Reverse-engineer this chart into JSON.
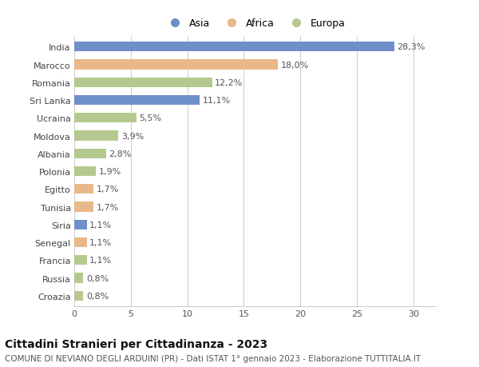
{
  "categories": [
    "India",
    "Marocco",
    "Romania",
    "Sri Lanka",
    "Ucraina",
    "Moldova",
    "Albania",
    "Polonia",
    "Egitto",
    "Tunisia",
    "Siria",
    "Senegal",
    "Francia",
    "Russia",
    "Croazia"
  ],
  "values": [
    28.3,
    18.0,
    12.2,
    11.1,
    5.5,
    3.9,
    2.8,
    1.9,
    1.7,
    1.7,
    1.1,
    1.1,
    1.1,
    0.8,
    0.8
  ],
  "labels": [
    "28,3%",
    "18,0%",
    "12,2%",
    "11,1%",
    "5,5%",
    "3,9%",
    "2,8%",
    "1,9%",
    "1,7%",
    "1,7%",
    "1,1%",
    "1,1%",
    "1,1%",
    "0,8%",
    "0,8%"
  ],
  "continents": [
    "Asia",
    "Africa",
    "Europa",
    "Asia",
    "Europa",
    "Europa",
    "Europa",
    "Europa",
    "Africa",
    "Africa",
    "Asia",
    "Africa",
    "Europa",
    "Europa",
    "Europa"
  ],
  "colors": {
    "Asia": "#6e8fc9",
    "Africa": "#e8b88a",
    "Europa": "#b5c98e"
  },
  "legend_labels": [
    "Asia",
    "Africa",
    "Europa"
  ],
  "xlim": [
    0,
    32
  ],
  "xticks": [
    0,
    5,
    10,
    15,
    20,
    25,
    30
  ],
  "title": "Cittadini Stranieri per Cittadinanza - 2023",
  "subtitle": "COMUNE DI NEVIANO DEGLI ARDUINI (PR) - Dati ISTAT 1° gennaio 2023 - Elaborazione TUTTITALIA.IT",
  "bg_color": "#ffffff",
  "grid_color": "#cccccc",
  "bar_height": 0.55,
  "title_fontsize": 10,
  "subtitle_fontsize": 7.5,
  "tick_fontsize": 8,
  "label_fontsize": 8
}
